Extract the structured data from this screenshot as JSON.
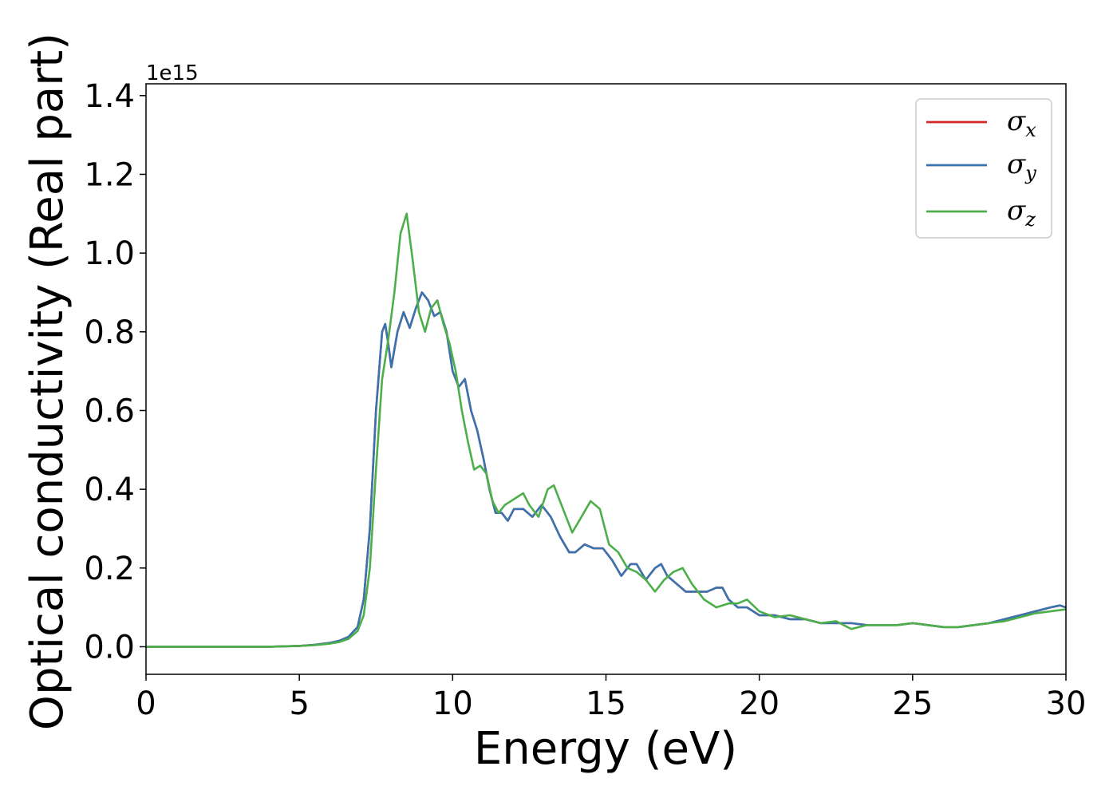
{
  "chart_data": {
    "type": "line",
    "title": "",
    "xlabel": "Energy (eV)",
    "ylabel": "Optical conductivity (Real part)",
    "y_offset_label": "1e15",
    "xlim": [
      0,
      30
    ],
    "ylim": [
      -0.07,
      1.43
    ],
    "x_ticks": [
      0,
      5,
      10,
      15,
      20,
      25,
      30
    ],
    "x_tick_labels": [
      "0",
      "5",
      "10",
      "15",
      "20",
      "25",
      "30"
    ],
    "y_ticks": [
      0.0,
      0.2,
      0.4,
      0.6,
      0.8,
      1.0,
      1.2,
      1.4
    ],
    "y_tick_labels": [
      "0.0",
      "0.2",
      "0.4",
      "0.6",
      "0.8",
      "1.0",
      "1.2",
      "1.4"
    ],
    "grid": false,
    "legend_position": "top-right",
    "series": [
      {
        "name": "σ",
        "subscript": "x",
        "color": "#d62728",
        "x": [
          0,
          2,
          4,
          5,
          5.5,
          6,
          6.3,
          6.6,
          6.9,
          7.1,
          7.3,
          7.5,
          7.7,
          7.8,
          7.9,
          8.0,
          8.2,
          8.4,
          8.6,
          8.8,
          9.0,
          9.2,
          9.4,
          9.6,
          9.8,
          10.0,
          10.2,
          10.4,
          10.6,
          10.8,
          11.0,
          11.2,
          11.4,
          11.6,
          11.8,
          12.0,
          12.3,
          12.6,
          12.9,
          13.2,
          13.5,
          13.8,
          14.0,
          14.3,
          14.6,
          14.9,
          15.2,
          15.5,
          15.8,
          16.0,
          16.3,
          16.6,
          16.8,
          17.0,
          17.3,
          17.6,
          18.0,
          18.3,
          18.6,
          18.8,
          19.0,
          19.3,
          19.6,
          20.0,
          20.5,
          21.0,
          21.5,
          22.0,
          22.5,
          23.0,
          23.5,
          24.0,
          24.5,
          25.0,
          25.5,
          26.0,
          26.5,
          27.0,
          27.5,
          28.0,
          28.5,
          29.0,
          29.5,
          29.8,
          30.0
        ],
        "values": [
          0.0,
          0.0,
          0.0,
          0.002,
          0.005,
          0.01,
          0.015,
          0.025,
          0.05,
          0.12,
          0.3,
          0.6,
          0.8,
          0.82,
          0.77,
          0.71,
          0.8,
          0.85,
          0.81,
          0.86,
          0.9,
          0.88,
          0.84,
          0.85,
          0.8,
          0.7,
          0.66,
          0.68,
          0.6,
          0.55,
          0.48,
          0.4,
          0.34,
          0.34,
          0.32,
          0.35,
          0.35,
          0.33,
          0.36,
          0.33,
          0.28,
          0.24,
          0.24,
          0.26,
          0.25,
          0.25,
          0.22,
          0.18,
          0.21,
          0.21,
          0.17,
          0.2,
          0.21,
          0.18,
          0.16,
          0.14,
          0.14,
          0.14,
          0.15,
          0.15,
          0.12,
          0.1,
          0.1,
          0.08,
          0.08,
          0.07,
          0.07,
          0.06,
          0.06,
          0.06,
          0.055,
          0.055,
          0.055,
          0.06,
          0.055,
          0.05,
          0.05,
          0.055,
          0.06,
          0.07,
          0.08,
          0.09,
          0.1,
          0.105,
          0.1
        ]
      },
      {
        "name": "σ",
        "subscript": "y",
        "color": "#3a74b0",
        "x": [
          0,
          2,
          4,
          5,
          5.5,
          6,
          6.3,
          6.6,
          6.9,
          7.1,
          7.3,
          7.5,
          7.7,
          7.8,
          7.9,
          8.0,
          8.2,
          8.4,
          8.6,
          8.8,
          9.0,
          9.2,
          9.4,
          9.6,
          9.8,
          10.0,
          10.2,
          10.4,
          10.6,
          10.8,
          11.0,
          11.2,
          11.4,
          11.6,
          11.8,
          12.0,
          12.3,
          12.6,
          12.9,
          13.2,
          13.5,
          13.8,
          14.0,
          14.3,
          14.6,
          14.9,
          15.2,
          15.5,
          15.8,
          16.0,
          16.3,
          16.6,
          16.8,
          17.0,
          17.3,
          17.6,
          18.0,
          18.3,
          18.6,
          18.8,
          19.0,
          19.3,
          19.6,
          20.0,
          20.5,
          21.0,
          21.5,
          22.0,
          22.5,
          23.0,
          23.5,
          24.0,
          24.5,
          25.0,
          25.5,
          26.0,
          26.5,
          27.0,
          27.5,
          28.0,
          28.5,
          29.0,
          29.5,
          29.8,
          30.0
        ],
        "values": [
          0.0,
          0.0,
          0.0,
          0.002,
          0.005,
          0.01,
          0.015,
          0.025,
          0.05,
          0.12,
          0.3,
          0.6,
          0.8,
          0.82,
          0.77,
          0.71,
          0.8,
          0.85,
          0.81,
          0.86,
          0.9,
          0.88,
          0.84,
          0.85,
          0.8,
          0.7,
          0.66,
          0.68,
          0.6,
          0.55,
          0.48,
          0.4,
          0.34,
          0.34,
          0.32,
          0.35,
          0.35,
          0.33,
          0.36,
          0.33,
          0.28,
          0.24,
          0.24,
          0.26,
          0.25,
          0.25,
          0.22,
          0.18,
          0.21,
          0.21,
          0.17,
          0.2,
          0.21,
          0.18,
          0.16,
          0.14,
          0.14,
          0.14,
          0.15,
          0.15,
          0.12,
          0.1,
          0.1,
          0.08,
          0.08,
          0.07,
          0.07,
          0.06,
          0.06,
          0.06,
          0.055,
          0.055,
          0.055,
          0.06,
          0.055,
          0.05,
          0.05,
          0.055,
          0.06,
          0.07,
          0.08,
          0.09,
          0.1,
          0.105,
          0.1
        ]
      },
      {
        "name": "σ",
        "subscript": "z",
        "color": "#4daf4a",
        "x": [
          0,
          2,
          4,
          5,
          5.5,
          6,
          6.3,
          6.6,
          6.9,
          7.1,
          7.3,
          7.5,
          7.7,
          7.9,
          8.1,
          8.3,
          8.5,
          8.7,
          8.9,
          9.1,
          9.3,
          9.5,
          9.7,
          9.9,
          10.1,
          10.3,
          10.5,
          10.7,
          10.9,
          11.1,
          11.3,
          11.5,
          11.7,
          11.9,
          12.1,
          12.3,
          12.5,
          12.8,
          13.1,
          13.3,
          13.6,
          13.9,
          14.2,
          14.5,
          14.8,
          15.1,
          15.4,
          15.7,
          16.0,
          16.3,
          16.6,
          16.9,
          17.2,
          17.5,
          17.8,
          18.2,
          18.6,
          19.0,
          19.3,
          19.6,
          20.0,
          20.5,
          21.0,
          21.5,
          22.0,
          22.5,
          23.0,
          23.5,
          24.0,
          24.5,
          25.0,
          25.5,
          26.0,
          26.5,
          27.0,
          27.5,
          28.0,
          28.5,
          29.0,
          29.5,
          30.0
        ],
        "values": [
          0.0,
          0.0,
          0.0,
          0.002,
          0.004,
          0.008,
          0.012,
          0.02,
          0.04,
          0.08,
          0.2,
          0.45,
          0.68,
          0.78,
          0.9,
          1.05,
          1.1,
          0.98,
          0.85,
          0.8,
          0.86,
          0.88,
          0.82,
          0.77,
          0.7,
          0.6,
          0.52,
          0.45,
          0.46,
          0.44,
          0.37,
          0.34,
          0.36,
          0.37,
          0.38,
          0.39,
          0.36,
          0.33,
          0.4,
          0.41,
          0.35,
          0.29,
          0.33,
          0.37,
          0.35,
          0.26,
          0.24,
          0.2,
          0.19,
          0.17,
          0.14,
          0.17,
          0.19,
          0.2,
          0.16,
          0.12,
          0.1,
          0.11,
          0.11,
          0.12,
          0.09,
          0.075,
          0.08,
          0.07,
          0.06,
          0.065,
          0.045,
          0.055,
          0.055,
          0.055,
          0.06,
          0.055,
          0.05,
          0.05,
          0.055,
          0.06,
          0.065,
          0.075,
          0.085,
          0.09,
          0.095
        ]
      }
    ]
  }
}
